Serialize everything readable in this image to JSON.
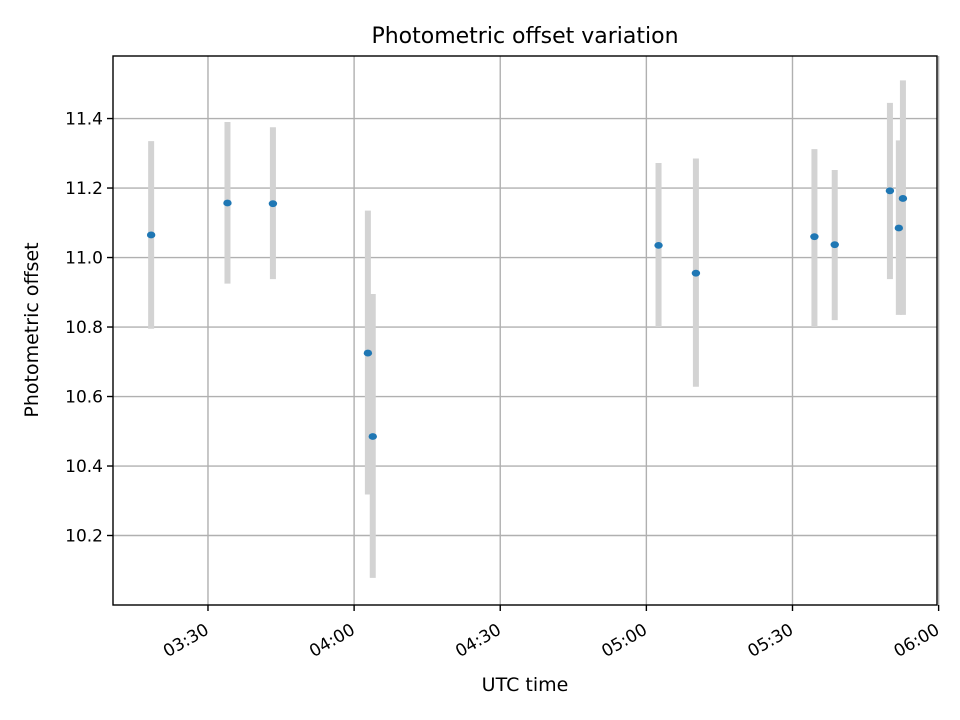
{
  "chart_data": {
    "type": "scatter",
    "title": "Photometric offset variation",
    "xlabel": "UTC time",
    "ylabel": "Photometric offset",
    "x_unit": "minutes after 03:00 UTC",
    "xlim": [
      "03:10:30",
      "05:59:40"
    ],
    "ylim": [
      10.0,
      11.58
    ],
    "grid": true,
    "xticks": [
      {
        "t": 30,
        "label": "03:30"
      },
      {
        "t": 60,
        "label": "04:00"
      },
      {
        "t": 90,
        "label": "04:30"
      },
      {
        "t": 120,
        "label": "05:00"
      },
      {
        "t": 150,
        "label": "05:30"
      },
      {
        "t": 180,
        "label": "06:00"
      }
    ],
    "yticks": [
      {
        "v": 10.2,
        "label": "10.2"
      },
      {
        "v": 10.4,
        "label": "10.4"
      },
      {
        "v": 10.6,
        "label": "10.6"
      },
      {
        "v": 10.8,
        "label": "10.8"
      },
      {
        "v": 11.0,
        "label": "11.0"
      },
      {
        "v": 11.2,
        "label": "11.2"
      },
      {
        "v": 11.4,
        "label": "11.4"
      }
    ],
    "points": [
      {
        "time": "03:18:20",
        "t": 18.33,
        "y": 11.065,
        "lo": 10.795,
        "hi": 11.335
      },
      {
        "time": "03:34:00",
        "t": 34.0,
        "y": 11.157,
        "lo": 10.925,
        "hi": 11.39
      },
      {
        "time": "03:43:20",
        "t": 43.33,
        "y": 11.155,
        "lo": 10.938,
        "hi": 11.375
      },
      {
        "time": "04:02:50",
        "t": 62.83,
        "y": 10.725,
        "lo": 10.318,
        "hi": 11.135
      },
      {
        "time": "04:03:50",
        "t": 63.83,
        "y": 10.485,
        "lo": 10.078,
        "hi": 10.895
      },
      {
        "time": "05:02:30",
        "t": 122.5,
        "y": 11.035,
        "lo": 10.8,
        "hi": 11.272
      },
      {
        "time": "05:10:10",
        "t": 130.17,
        "y": 10.955,
        "lo": 10.628,
        "hi": 11.285
      },
      {
        "time": "05:34:30",
        "t": 154.5,
        "y": 11.06,
        "lo": 10.8,
        "hi": 11.312
      },
      {
        "time": "05:38:40",
        "t": 158.67,
        "y": 11.037,
        "lo": 10.82,
        "hi": 11.252
      },
      {
        "time": "05:50:00",
        "t": 170.0,
        "y": 11.192,
        "lo": 10.938,
        "hi": 11.445
      },
      {
        "time": "05:51:50",
        "t": 171.83,
        "y": 11.085,
        "lo": 10.835,
        "hi": 11.337
      },
      {
        "time": "05:52:40",
        "t": 172.67,
        "y": 11.17,
        "lo": 10.835,
        "hi": 11.51
      }
    ],
    "colors": {
      "marker": "#1f77b4",
      "errorbar": "#d3d3d3",
      "grid": "#b0b0b0"
    }
  }
}
